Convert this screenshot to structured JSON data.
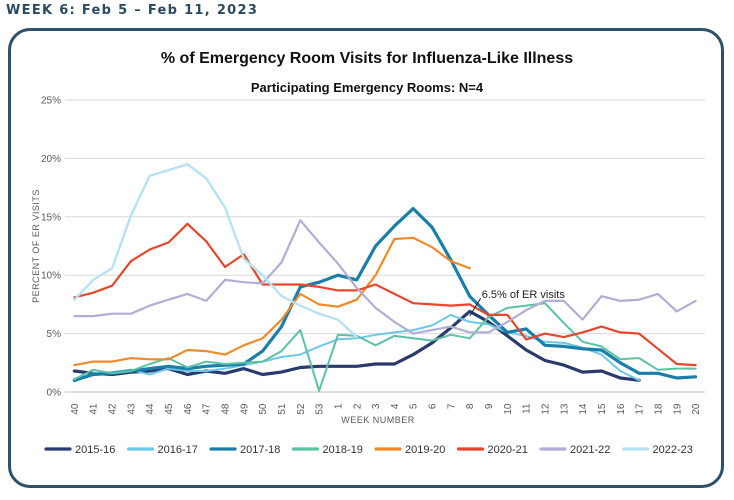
{
  "header": {
    "week_label": "WEEK 6: Feb 5 – Feb 11, 2023"
  },
  "chart_data": {
    "type": "line",
    "title": "% of Emergency Room Visits for Influenza-Like Illness",
    "subtitle": "Participating Emergency Rooms: N=4",
    "xlabel": "WEEK NUMBER",
    "ylabel": "PERCENT OF ER VISITS",
    "ylim": [
      0,
      25
    ],
    "yticks": [
      "0%",
      "5%",
      "10%",
      "15%",
      "20%",
      "25%"
    ],
    "categories": [
      "40",
      "41",
      "42",
      "43",
      "44",
      "45",
      "46",
      "47",
      "48",
      "49",
      "50",
      "51",
      "52",
      "53",
      "1",
      "2",
      "3",
      "4",
      "5",
      "6",
      "7",
      "8",
      "9",
      "10",
      "11",
      "12",
      "13",
      "14",
      "15",
      "16",
      "17",
      "18",
      "19",
      "20"
    ],
    "grid": "horizontal",
    "legend_position": "bottom",
    "annotation": {
      "text": "6.5% of ER visits",
      "x": "8",
      "y": 6.5
    },
    "series": [
      {
        "name": "2015-16",
        "color": "#283a6e",
        "width": 3.2,
        "values": [
          1.8,
          1.6,
          1.5,
          1.7,
          1.8,
          2.0,
          1.5,
          1.8,
          1.6,
          2.0,
          1.5,
          1.7,
          2.1,
          2.2,
          2.2,
          2.2,
          2.4,
          2.4,
          3.2,
          4.2,
          5.5,
          6.9,
          6.0,
          4.8,
          3.6,
          2.7,
          2.3,
          1.7,
          1.8,
          1.2,
          1.0,
          null,
          null,
          null
        ]
      },
      {
        "name": "2016-17",
        "color": "#6cc7e8",
        "width": 2.0,
        "values": [
          0.9,
          1.6,
          1.7,
          1.9,
          1.5,
          2.0,
          1.8,
          1.8,
          2.0,
          2.3,
          2.6,
          3.0,
          3.2,
          3.9,
          4.5,
          4.6,
          4.9,
          5.1,
          5.3,
          5.7,
          6.6,
          6.0,
          5.8,
          5.1,
          4.8,
          4.3,
          4.2,
          3.8,
          3.2,
          1.8,
          1.0,
          null,
          null,
          null
        ]
      },
      {
        "name": "2017-18",
        "color": "#1a7fa8",
        "width": 3.2,
        "values": [
          1.0,
          1.5,
          1.6,
          1.8,
          2.0,
          2.2,
          2.0,
          2.2,
          2.3,
          2.4,
          3.5,
          5.6,
          9.0,
          9.4,
          10.0,
          9.6,
          12.5,
          14.2,
          15.7,
          14.1,
          11.3,
          8.2,
          6.6,
          5.1,
          5.4,
          4.0,
          3.9,
          3.7,
          3.6,
          2.5,
          1.6,
          1.6,
          1.2,
          1.3
        ]
      },
      {
        "name": "2018-19",
        "color": "#5bc2a4",
        "width": 2.0,
        "values": [
          1.1,
          1.9,
          1.6,
          1.8,
          2.4,
          2.9,
          2.1,
          2.6,
          2.4,
          2.5,
          2.6,
          3.5,
          5.3,
          0.1,
          4.9,
          4.8,
          4.0,
          4.8,
          4.6,
          4.4,
          4.9,
          4.6,
          6.4,
          7.2,
          7.4,
          7.6,
          5.9,
          4.3,
          3.9,
          2.8,
          2.9,
          1.9,
          2.0,
          2.0
        ]
      },
      {
        "name": "2019-20",
        "color": "#f08a2a",
        "width": 2.2,
        "values": [
          2.3,
          2.6,
          2.6,
          2.9,
          2.8,
          2.8,
          3.6,
          3.5,
          3.2,
          4.0,
          4.6,
          6.2,
          8.4,
          7.5,
          7.3,
          7.9,
          10.0,
          13.1,
          13.2,
          12.4,
          11.2,
          10.6,
          null,
          null,
          null,
          null,
          null,
          null,
          null,
          null,
          null,
          null,
          null,
          null
        ]
      },
      {
        "name": "2020-21",
        "color": "#e4472d",
        "width": 2.2,
        "values": [
          8.1,
          8.5,
          9.1,
          11.2,
          12.2,
          12.8,
          14.4,
          12.9,
          10.7,
          11.8,
          9.2,
          9.2,
          9.2,
          9.0,
          8.7,
          8.7,
          9.2,
          8.4,
          7.6,
          7.5,
          7.4,
          7.5,
          6.6,
          6.6,
          4.5,
          5.0,
          4.7,
          5.1,
          5.6,
          5.1,
          5.0,
          3.7,
          2.4,
          2.3
        ]
      },
      {
        "name": "2021-22",
        "color": "#b0aed4",
        "width": 2.2,
        "values": [
          6.5,
          6.5,
          6.7,
          6.7,
          7.4,
          7.9,
          8.4,
          7.8,
          9.6,
          9.4,
          9.3,
          11.1,
          14.7,
          12.8,
          11.0,
          8.9,
          7.2,
          6.0,
          5.0,
          5.3,
          5.6,
          5.1,
          5.1,
          6.0,
          7.0,
          7.8,
          7.8,
          6.2,
          8.2,
          7.8,
          7.9,
          8.4,
          6.9,
          7.8
        ]
      },
      {
        "name": "2022-23",
        "color": "#b6e2f3",
        "width": 2.4,
        "values": [
          7.9,
          9.6,
          10.6,
          15.1,
          18.5,
          19.0,
          19.5,
          18.3,
          15.8,
          11.4,
          10.0,
          8.2,
          7.4,
          6.7,
          6.2,
          4.7,
          null,
          null,
          null,
          null,
          null,
          null,
          null,
          null,
          null,
          null,
          null,
          null,
          null,
          null,
          null,
          null,
          null,
          null
        ]
      }
    ]
  }
}
